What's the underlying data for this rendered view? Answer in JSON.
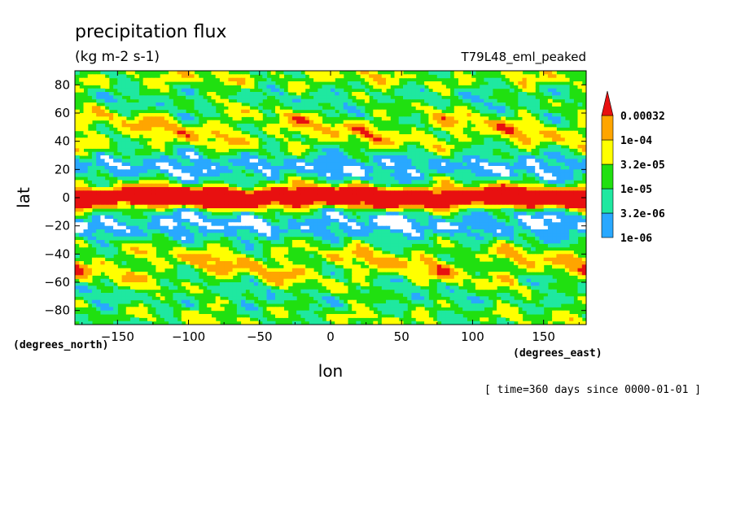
{
  "chart_data": {
    "type": "heatmap",
    "title": "precipitation flux",
    "units": "(kg m-2 s-1)",
    "dataset": "T79L48_eml_peaked",
    "xlabel": "lon",
    "ylabel": "lat",
    "x_units": "(degrees_east)",
    "y_units": "(degrees_north)",
    "xlim": [
      -180,
      180
    ],
    "ylim": [
      -90,
      90
    ],
    "x_ticks": [
      -150,
      -100,
      -50,
      0,
      50,
      100,
      150
    ],
    "y_ticks": [
      80,
      60,
      40,
      20,
      0,
      -20,
      -40,
      -60,
      -80
    ],
    "time_label": "[ time=360 days since 0000-01-01 ]",
    "legend": {
      "placement": "right",
      "levels": [
        "1e-06",
        "3.2e-06",
        "1e-05",
        "3.2e-05",
        "1e-04",
        "0.00032"
      ],
      "colors": [
        "#ffffff",
        "#29a8ff",
        "#1fe8a0",
        "#20e010",
        "#ffff00",
        "#ffa500",
        "#e81010"
      ]
    },
    "features": [
      {
        "lon": [
          -180,
          180
        ],
        "lat": [
          -5,
          5
        ],
        "level": "1e-04",
        "note": "equatorial band"
      },
      {
        "lon": [
          -180,
          180
        ],
        "lat": [
          35,
          60
        ],
        "level": "3.2e-05",
        "note": "northern storm track"
      },
      {
        "lon": [
          -180,
          180
        ],
        "lat": [
          -60,
          -35
        ],
        "level": "3.2e-05",
        "note": "southern storm track"
      }
    ]
  }
}
